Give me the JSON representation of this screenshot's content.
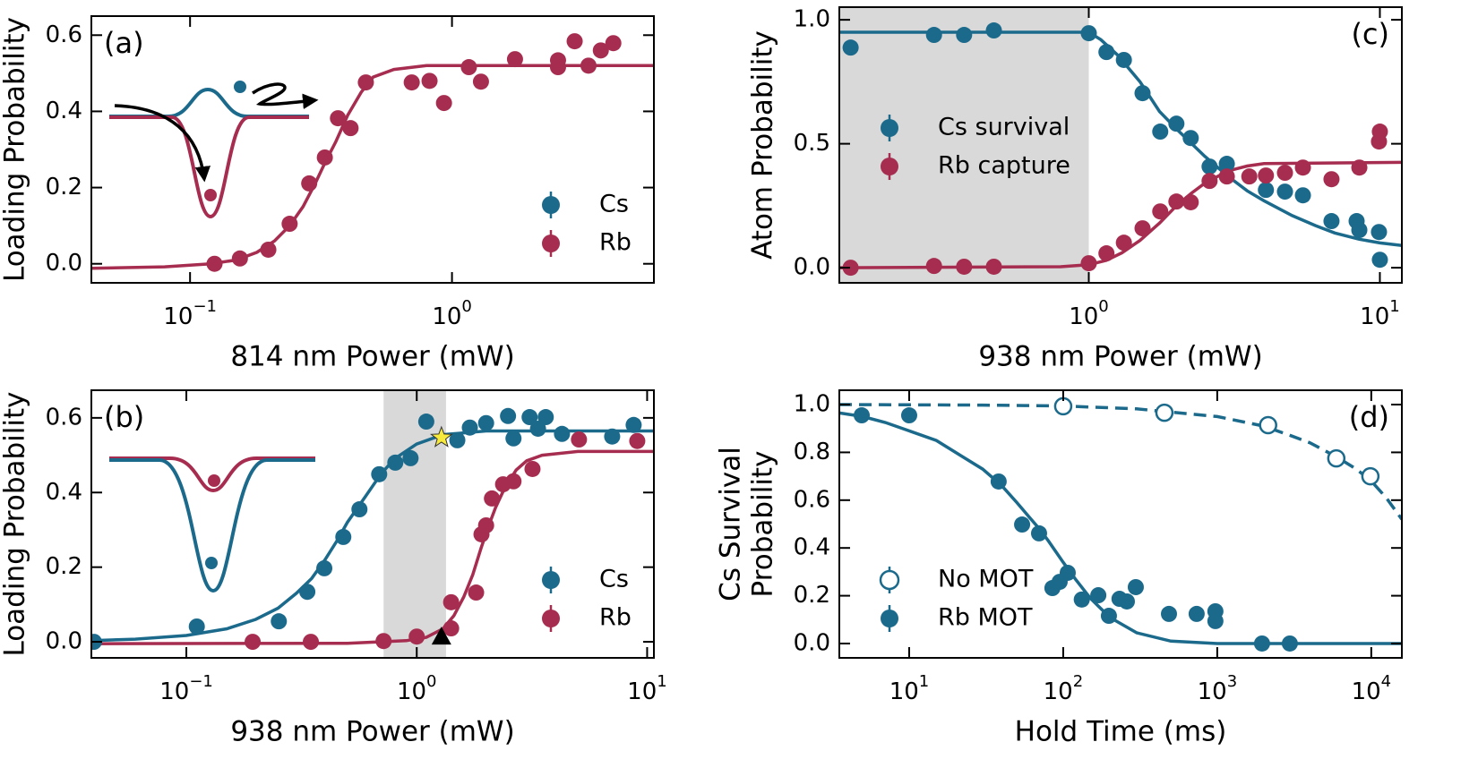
{
  "chart_data": [
    {
      "type": "scatter",
      "panel_label": "(a)",
      "xlabel": "814 nm Power (mW)",
      "ylabel": [
        "Loading Probability"
      ],
      "xscale": "log",
      "xlim": [
        0.042,
        5.9
      ],
      "ylim": [
        -0.05,
        0.65
      ],
      "xticks": [
        {
          "value": 0.1,
          "label": "10",
          "exponent": "−1"
        },
        {
          "value": 1,
          "label": "10",
          "exponent": "0"
        }
      ],
      "yticks": [
        {
          "value": 0,
          "label": "0.0"
        },
        0.2,
        0.4,
        0.6
      ],
      "legend": "lower right",
      "series": [
        {
          "name": "Cs",
          "color": "#1b6a8c",
          "x": [],
          "values": []
        },
        {
          "name": "Rb",
          "color": "#a62d4f",
          "x": [
            0.124,
            0.155,
            0.199,
            0.24,
            0.285,
            0.327,
            0.367,
            0.41,
            0.469,
            0.702,
            0.821,
            0.932,
            1.16,
            1.29,
            1.74,
            2.54,
            2.54,
            3.32,
            2.94,
            3.7,
            4.13
          ],
          "values": [
            0.0,
            0.014,
            0.037,
            0.105,
            0.211,
            0.279,
            0.382,
            0.356,
            0.476,
            0.476,
            0.48,
            0.422,
            0.516,
            0.478,
            0.537,
            0.534,
            0.516,
            0.52,
            0.584,
            0.56,
            0.579
          ]
        }
      ],
      "fits": [
        {
          "color": "#a62d4f",
          "dash": false,
          "x": [
            0.042,
            0.08,
            0.12,
            0.15,
            0.18,
            0.21,
            0.24,
            0.27,
            0.3,
            0.33,
            0.36,
            0.4,
            0.45,
            0.5,
            0.6,
            0.8,
            1,
            5.9
          ],
          "values": [
            -0.012,
            -0.008,
            0.0,
            0.01,
            0.03,
            0.06,
            0.1,
            0.15,
            0.21,
            0.27,
            0.32,
            0.39,
            0.45,
            0.49,
            0.51,
            0.52,
            0.52,
            0.52
          ]
        }
      ]
    },
    {
      "type": "scatter",
      "panel_label": "(b)",
      "xlabel": "938 nm Power (mW)",
      "ylabel": [
        "Loading Probability"
      ],
      "xscale": "log",
      "xlim": [
        0.0387,
        10.7
      ],
      "ylim": [
        -0.043,
        0.674
      ],
      "xticks": [
        {
          "value": 0.1,
          "label": "10",
          "exponent": "−1"
        },
        {
          "value": 1,
          "label": "10",
          "exponent": "0"
        },
        {
          "value": 10,
          "label": "10",
          "exponent": "1"
        }
      ],
      "yticks": [
        {
          "value": 0,
          "label": "0.0"
        },
        0.2,
        0.4,
        0.6
      ],
      "legend": "lower right",
      "shade": [
        0.718,
        1.34
      ],
      "shade_color": "#d9d9d9",
      "series": [
        {
          "name": "Cs",
          "color": "#1b6a8c",
          "x": [
            0.0397,
            0.111,
            0.252,
            0.335,
            0.397,
            0.48,
            0.564,
            0.687,
            0.807,
            0.94,
            1.1,
            1.5,
            1.7,
            2.0,
            2.49,
            2.63,
            3.09,
            3.36,
            3.63,
            4.27,
            7.05,
            8.74
          ],
          "values": [
            0.0,
            0.041,
            0.055,
            0.134,
            0.197,
            0.281,
            0.355,
            0.449,
            0.48,
            0.492,
            0.59,
            0.54,
            0.574,
            0.586,
            0.605,
            0.545,
            0.602,
            0.571,
            0.602,
            0.557,
            0.55,
            0.581
          ]
        },
        {
          "name": "Rb",
          "color": "#a62d4f",
          "x": [
            0.194,
            0.347,
            0.718,
            1.0,
            1.41,
            1.41,
            1.81,
            1.91,
            2.0,
            2.12,
            2.37,
            2.63,
            3.18,
            5.06,
            9.06
          ],
          "values": [
            0.0,
            0.0,
            0.002,
            0.014,
            0.106,
            0.036,
            0.132,
            0.288,
            0.312,
            0.384,
            0.422,
            0.43,
            0.463,
            0.542,
            0.538
          ]
        }
      ],
      "fits": [
        {
          "color": "#1b6a8c",
          "dash": false,
          "x": [
            0.0387,
            0.06,
            0.1,
            0.15,
            0.2,
            0.25,
            0.3,
            0.35,
            0.4,
            0.45,
            0.5,
            0.6,
            0.7,
            0.8,
            1,
            1.3,
            2,
            10.7
          ],
          "values": [
            0.003,
            0.007,
            0.017,
            0.035,
            0.06,
            0.09,
            0.13,
            0.17,
            0.22,
            0.27,
            0.32,
            0.39,
            0.45,
            0.49,
            0.53,
            0.555,
            0.565,
            0.565
          ]
        },
        {
          "color": "#a62d4f",
          "dash": false,
          "x": [
            0.0387,
            0.5,
            0.9,
            1.1,
            1.3,
            1.45,
            1.6,
            1.75,
            1.9,
            2.05,
            2.2,
            2.4,
            2.7,
            3,
            3.5,
            5,
            10.7
          ],
          "values": [
            -0.005,
            -0.004,
            0.003,
            0.012,
            0.035,
            0.07,
            0.12,
            0.18,
            0.25,
            0.31,
            0.36,
            0.41,
            0.46,
            0.485,
            0.5,
            0.51,
            0.51
          ]
        }
      ],
      "markers": [
        {
          "shape": "star",
          "color": "#f7ea3c",
          "x": 1.28,
          "y": 0.547
        },
        {
          "shape": "triangle",
          "color": "#000000",
          "x": 1.28,
          "y": 0.012
        }
      ]
    },
    {
      "type": "scatter",
      "panel_label": "(c)",
      "xlabel": "938 nm Power (mW)",
      "ylabel": [
        "Atom Probability"
      ],
      "xscale": "log",
      "xlim": [
        0.139,
        11.9
      ],
      "ylim": [
        -0.061,
        1.051
      ],
      "xticks": [
        {
          "value": 1,
          "label": "10",
          "exponent": "0"
        },
        {
          "value": 10,
          "label": "10",
          "exponent": "1"
        }
      ],
      "yticks": [
        {
          "value": 0,
          "label": "0.0"
        },
        0.5,
        {
          "value": 1,
          "label": "1.0"
        }
      ],
      "legend": "upper left",
      "shade": [
        0.139,
        1.0
      ],
      "shade_color": "#d9d9d9",
      "series": [
        {
          "name": "Cs survival",
          "color": "#1b6a8c",
          "x": [
            0.152,
            0.294,
            0.373,
            0.472,
            1.0,
            1.15,
            1.32,
            1.53,
            1.76,
            2.0,
            2.24,
            2.6,
            2.98,
            4.06,
            4.72,
            5.44,
            6.82,
            8.32,
            8.5,
            9.93,
            10.0
          ],
          "values": [
            0.888,
            0.939,
            0.939,
            0.957,
            0.946,
            0.87,
            0.838,
            0.704,
            0.549,
            0.581,
            0.523,
            0.408,
            0.419,
            0.314,
            0.307,
            0.292,
            0.188,
            0.188,
            0.152,
            0.144,
            0.032
          ]
        },
        {
          "name": "Rb capture",
          "color": "#a62d4f",
          "x": [
            0.152,
            0.294,
            0.373,
            0.472,
            1.0,
            1.15,
            1.32,
            1.53,
            1.76,
            2.0,
            2.24,
            2.6,
            2.98,
            3.56,
            4.06,
            4.72,
            5.44,
            6.82,
            8.5,
            9.93,
            10.0
          ],
          "values": [
            0.0,
            0.007,
            0.004,
            0.004,
            0.018,
            0.058,
            0.101,
            0.159,
            0.227,
            0.267,
            0.264,
            0.35,
            0.368,
            0.368,
            0.372,
            0.383,
            0.404,
            0.357,
            0.404,
            0.509,
            0.549
          ]
        }
      ],
      "fits": [
        {
          "color": "#1b6a8c",
          "dash": false,
          "x": [
            0.139,
            1.0,
            1.1,
            1.25,
            1.5,
            1.75,
            2,
            2.5,
            3,
            3.5,
            4,
            5,
            6,
            7,
            8.5,
            10,
            11.9
          ],
          "values": [
            0.95,
            0.95,
            0.92,
            0.86,
            0.75,
            0.63,
            0.56,
            0.45,
            0.37,
            0.31,
            0.27,
            0.21,
            0.17,
            0.14,
            0.115,
            0.1,
            0.09
          ]
        },
        {
          "color": "#a62d4f",
          "dash": false,
          "x": [
            0.139,
            0.8,
            1,
            1.15,
            1.3,
            1.5,
            1.75,
            2,
            2.25,
            2.5,
            3,
            3.5,
            4,
            11.9
          ],
          "values": [
            0.0,
            0.004,
            0.012,
            0.03,
            0.06,
            0.11,
            0.18,
            0.25,
            0.3,
            0.34,
            0.39,
            0.41,
            0.42,
            0.425
          ]
        }
      ]
    },
    {
      "type": "scatter",
      "panel_label": "(d)",
      "xlabel": "Hold Time (ms)",
      "ylabel": [
        "Cs Survival",
        "Probability"
      ],
      "xscale": "log",
      "xlim": [
        3.52,
        15800
      ],
      "ylim": [
        -0.06,
        1.06
      ],
      "xticks": [
        {
          "value": 10,
          "label": "10",
          "exponent": "1"
        },
        {
          "value": 100,
          "label": "10",
          "exponent": "2"
        },
        {
          "value": 1000,
          "label": "10",
          "exponent": "3"
        },
        {
          "value": 10000,
          "label": "10",
          "exponent": "4"
        }
      ],
      "yticks": [
        {
          "value": 0,
          "label": "0.0"
        },
        0.2,
        0.4,
        0.6,
        0.8,
        {
          "value": 1,
          "label": "1.0"
        }
      ],
      "legend": "lower left",
      "series": [
        {
          "name": "No MOT",
          "color": "#1b6a8c",
          "marker": "open",
          "x": [
            100,
            454,
            2140,
            5930,
            9870
          ],
          "values": [
            0.993,
            0.966,
            0.914,
            0.775,
            0.7
          ]
        },
        {
          "name": "Rb MOT",
          "color": "#1b6a8c",
          "x": [
            4.92,
            10,
            38.1,
            54.1,
            69.7,
            85.1,
            107,
            94.8,
            132,
            169,
            198,
            232,
            259,
            296,
            486,
            735,
            973,
            973,
            1954,
            2960
          ],
          "values": [
            0.955,
            0.955,
            0.678,
            0.498,
            0.461,
            0.232,
            0.296,
            0.258,
            0.184,
            0.202,
            0.116,
            0.187,
            0.176,
            0.236,
            0.124,
            0.124,
            0.135,
            0.094,
            0.0,
            0.0
          ]
        }
      ],
      "fits": [
        {
          "color": "#1b6a8c",
          "dash": true,
          "x": [
            3.52,
            30,
            100,
            300,
            1000,
            2000,
            3000,
            4000,
            6000,
            8000,
            10000,
            12500,
            15800
          ],
          "values": [
            1.0,
            0.998,
            0.994,
            0.982,
            0.95,
            0.91,
            0.87,
            0.84,
            0.78,
            0.73,
            0.68,
            0.61,
            0.52
          ]
        },
        {
          "color": "#1b6a8c",
          "dash": false,
          "x": [
            3.52,
            5,
            7,
            10,
            15,
            20,
            30,
            40,
            50,
            60,
            70,
            80,
            100,
            120,
            150,
            200,
            300,
            500,
            1000,
            15800
          ],
          "values": [
            0.965,
            0.95,
            0.925,
            0.89,
            0.85,
            0.8,
            0.73,
            0.66,
            0.59,
            0.53,
            0.48,
            0.43,
            0.34,
            0.27,
            0.19,
            0.11,
            0.045,
            0.01,
            0.0,
            0.0
          ]
        }
      ]
    }
  ]
}
